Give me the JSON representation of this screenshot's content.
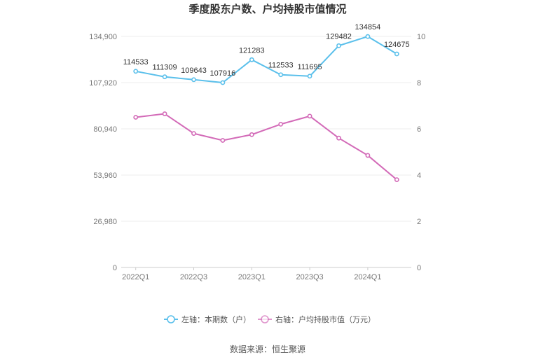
{
  "chart_data": {
    "type": "line",
    "title": "季度股东户数、户均持股市值情况",
    "categories": [
      "2022Q1",
      "2022Q2",
      "2022Q3",
      "2022Q4",
      "2023Q1",
      "2023Q2",
      "2023Q3",
      "2023Q4",
      "2024Q1",
      "2024Q2"
    ],
    "x_tick_labels": [
      "2022Q1",
      "2022Q3",
      "2023Q1",
      "2023Q3",
      "2024Q1"
    ],
    "left_axis": {
      "ticks": [
        "0",
        "26,980",
        "53,960",
        "80,940",
        "107,920",
        "134,900"
      ],
      "min": 0,
      "max": 134900
    },
    "right_axis": {
      "ticks": [
        "0",
        "2",
        "4",
        "6",
        "8",
        "10"
      ],
      "min": 0,
      "max": 10
    },
    "series": [
      {
        "name": "左轴：本期数（户）",
        "axis": "left",
        "color": "#5bc0eb",
        "values": [
          114533,
          111309,
          109643,
          107916,
          121283,
          112533,
          111695,
          129482,
          134854,
          124675
        ],
        "labels": [
          "114533",
          "111309",
          "109643",
          "107916",
          "121283",
          "112533",
          "111695",
          "129482",
          "134854",
          "124675"
        ]
      },
      {
        "name": "右轴：户均持股市值（万元）",
        "axis": "right",
        "color": "#d36bb8",
        "values": [
          6.5,
          6.65,
          5.8,
          5.5,
          5.75,
          6.2,
          6.55,
          5.6,
          4.85,
          3.8
        ]
      }
    ],
    "grid": true,
    "legend_position": "bottom"
  },
  "source": "数据来源：恒生聚源"
}
